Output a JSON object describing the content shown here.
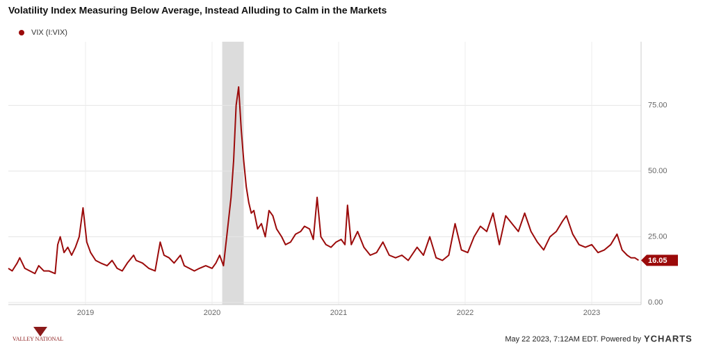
{
  "chart_data": {
    "type": "line",
    "title": "Volatility Index Measuring Below Average, Instead Alluding to Calm in the Markets",
    "x": [
      2018.39,
      2018.42,
      2018.46,
      2018.48,
      2018.52,
      2018.56,
      2018.6,
      2018.63,
      2018.67,
      2018.71,
      2018.76,
      2018.78,
      2018.8,
      2018.83,
      2018.86,
      2018.89,
      2018.92,
      2018.95,
      2018.98,
      2019.01,
      2019.04,
      2019.08,
      2019.12,
      2019.17,
      2019.21,
      2019.25,
      2019.29,
      2019.33,
      2019.38,
      2019.4,
      2019.45,
      2019.5,
      2019.55,
      2019.59,
      2019.62,
      2019.66,
      2019.7,
      2019.75,
      2019.78,
      2019.82,
      2019.86,
      2019.9,
      2019.95,
      2020.0,
      2020.03,
      2020.06,
      2020.09,
      2020.12,
      2020.15,
      2020.17,
      2020.19,
      2020.21,
      2020.23,
      2020.25,
      2020.27,
      2020.29,
      2020.31,
      2020.33,
      2020.36,
      2020.39,
      2020.42,
      2020.45,
      2020.48,
      2020.51,
      2020.55,
      2020.58,
      2020.62,
      2020.66,
      2020.7,
      2020.73,
      2020.77,
      2020.8,
      2020.83,
      2020.86,
      2020.9,
      2020.94,
      2020.98,
      2021.02,
      2021.05,
      2021.07,
      2021.1,
      2021.15,
      2021.2,
      2021.25,
      2021.3,
      2021.35,
      2021.4,
      2021.45,
      2021.5,
      2021.55,
      2021.62,
      2021.67,
      2021.72,
      2021.77,
      2021.82,
      2021.87,
      2021.92,
      2021.97,
      2022.02,
      2022.07,
      2022.12,
      2022.17,
      2022.22,
      2022.27,
      2022.32,
      2022.37,
      2022.42,
      2022.47,
      2022.52,
      2022.57,
      2022.62,
      2022.67,
      2022.72,
      2022.77,
      2022.8,
      2022.85,
      2022.9,
      2022.95,
      2023.0,
      2023.05,
      2023.1,
      2023.15,
      2023.2,
      2023.24,
      2023.28,
      2023.31,
      2023.34,
      2023.37
    ],
    "series": [
      {
        "name": "VIX (I:VIX)",
        "color": "#9b0a0a",
        "values": [
          13,
          12,
          15,
          17,
          13,
          12,
          11,
          14,
          12,
          12,
          11,
          22,
          25,
          19,
          21,
          18,
          21,
          25,
          36,
          23,
          19,
          16,
          15,
          14,
          16,
          13,
          12,
          15,
          18,
          16,
          15,
          13,
          12,
          23,
          18,
          17,
          15,
          18,
          14,
          13,
          12,
          13,
          14,
          13,
          15,
          18,
          14,
          27,
          40,
          54,
          75,
          82,
          66,
          54,
          44,
          38,
          34,
          35,
          28,
          30,
          25,
          35,
          33,
          28,
          25,
          22,
          23,
          26,
          27,
          29,
          28,
          24,
          40,
          25,
          22,
          21,
          23,
          24,
          22,
          37,
          22,
          27,
          21,
          18,
          19,
          23,
          18,
          17,
          18,
          16,
          21,
          18,
          25,
          17,
          16,
          18,
          30,
          20,
          19,
          25,
          29,
          27,
          34,
          22,
          33,
          30,
          27,
          34,
          27,
          23,
          20,
          25,
          27,
          31,
          33,
          26,
          22,
          21,
          22,
          19,
          20,
          22,
          26,
          20,
          18,
          17,
          17,
          16.05
        ]
      }
    ],
    "xlim": [
      2018.39,
      2023.39
    ],
    "xticks": [
      2019,
      2020,
      2021,
      2022,
      2023
    ],
    "ylim": [
      0,
      100
    ],
    "yticks": [
      {
        "value": 0,
        "label": "0.00"
      },
      {
        "value": 25,
        "label": "25.00"
      },
      {
        "value": 50,
        "label": "50.00"
      },
      {
        "value": 75,
        "label": "75.00"
      }
    ],
    "grid": true,
    "shaded_regions": [
      {
        "start": 2020.08,
        "end": 2020.25
      }
    ],
    "last_value": 16.05,
    "footer": "May 22 2023, 7:12AM EDT. Powered by",
    "brand": "YCHARTS",
    "logo_text": "VALLEY NATIONAL"
  }
}
